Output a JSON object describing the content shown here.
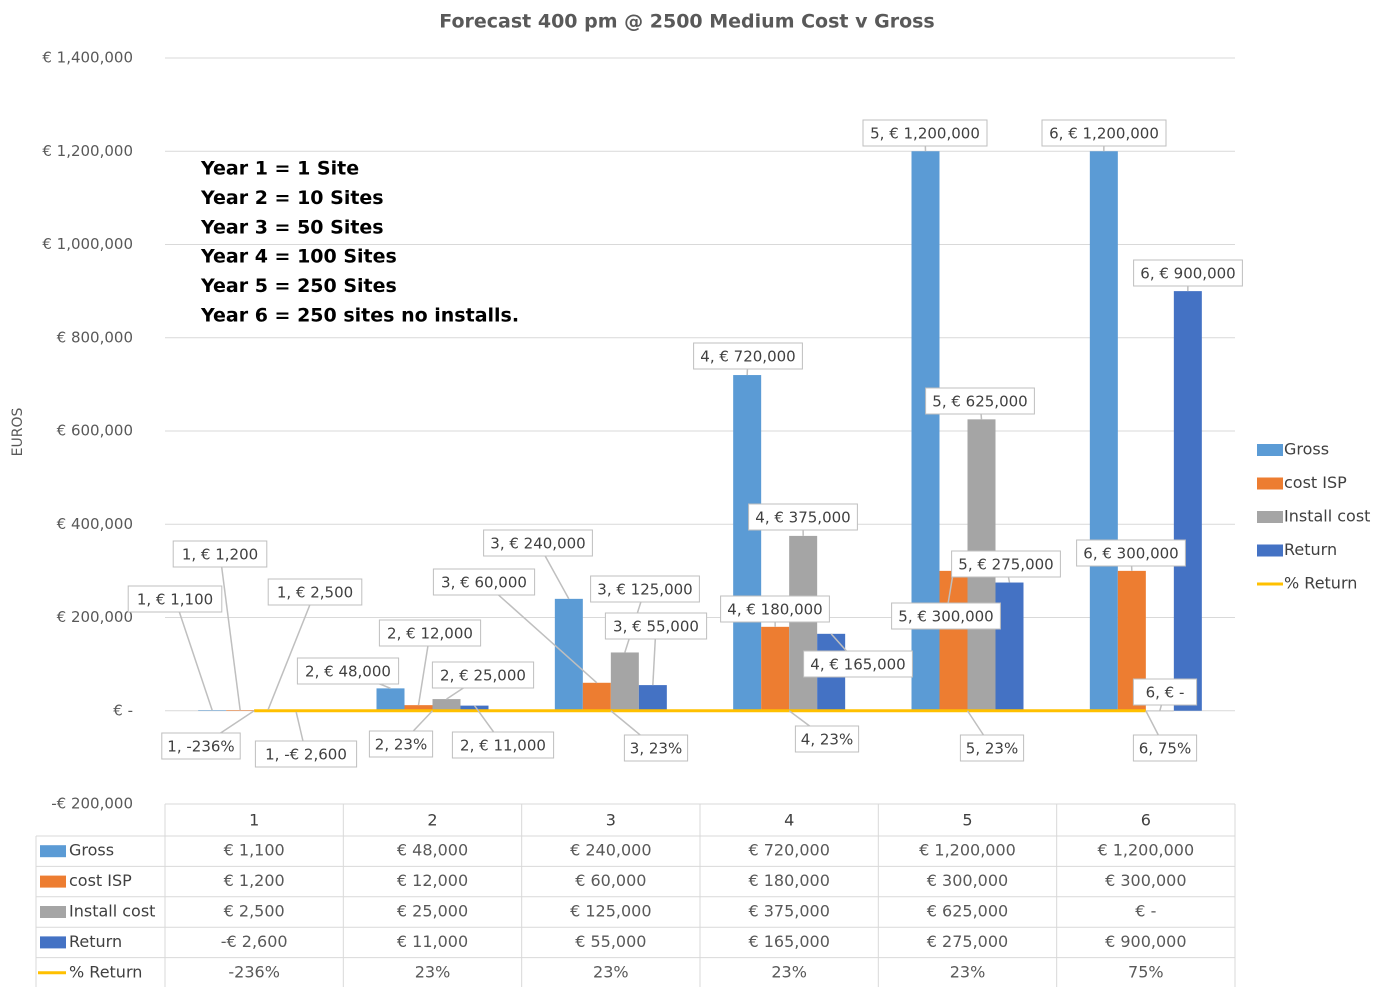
{
  "chart_data": {
    "type": "bar",
    "title": "Forecast 400 pm @ 2500  Medium Cost v Gross",
    "y_label": "EUROS",
    "annotation": [
      "Year 1 = 1 Site",
      "Year 2 = 10 Sites",
      "Year 3 = 50 Sites",
      "Year 4 = 100 Sites",
      "Year 5 = 250 Sites",
      "Year 6 = 250 sites no installs."
    ],
    "categories": [
      "1",
      "2",
      "3",
      "4",
      "5",
      "6"
    ],
    "series": [
      {
        "name": "Gross",
        "type": "bar",
        "color": "#5b9bd5",
        "values": [
          1100,
          48000,
          240000,
          720000,
          1200000,
          1200000
        ],
        "value_labels": [
          "1,  € 1,100",
          "2,  € 48,000",
          "3,  € 240,000",
          "4,  € 720,000",
          "5,  € 1,200,000",
          "6,  € 1,200,000"
        ],
        "table_labels": [
          "€ 1,100",
          "€ 48,000",
          "€ 240,000",
          "€ 720,000",
          "€ 1,200,000",
          "€ 1,200,000"
        ]
      },
      {
        "name": "cost ISP",
        "type": "bar",
        "color": "#ed7d31",
        "values": [
          1200,
          12000,
          60000,
          180000,
          300000,
          300000
        ],
        "value_labels": [
          "1,  € 1,200",
          "2,  € 12,000",
          "3,  € 60,000",
          "4,  € 180,000",
          "5,  € 300,000",
          "6,  € 300,000"
        ],
        "table_labels": [
          "€ 1,200",
          "€ 12,000",
          "€ 60,000",
          "€ 180,000",
          "€ 300,000",
          "€ 300,000"
        ]
      },
      {
        "name": "Install cost",
        "type": "bar",
        "color": "#a5a5a5",
        "values": [
          2500,
          25000,
          125000,
          375000,
          625000,
          0
        ],
        "value_labels": [
          "1,  € 2,500",
          "2,  € 25,000",
          "3,  € 125,000",
          "4,  € 375,000",
          "5,  € 625,000",
          "6,  € -"
        ],
        "table_labels": [
          "€ 2,500",
          "€ 25,000",
          "€ 125,000",
          "€ 375,000",
          "€ 625,000",
          "€ -"
        ]
      },
      {
        "name": "Return",
        "type": "bar",
        "color": "#4472c4",
        "values": [
          -2600,
          11000,
          55000,
          165000,
          275000,
          900000
        ],
        "value_labels": [
          "1,  -€ 2,600",
          "2,  € 11,000",
          "3,  € 55,000",
          "4,  € 165,000",
          "5,  € 275,000",
          "6,  € 900,000"
        ],
        "table_labels": [
          "-€ 2,600",
          "€ 11,000",
          "€ 55,000",
          "€ 165,000",
          "€ 275,000",
          "€ 900,000"
        ]
      },
      {
        "name": "% Return",
        "type": "line",
        "color": "#ffc000",
        "values": [
          -2.36,
          0.23,
          0.23,
          0.23,
          0.23,
          0.75
        ],
        "value_labels": [
          "1,  -236%",
          "2,  23%",
          "3,  23%",
          "4,  23%",
          "5,  23%",
          "6,  75%"
        ],
        "table_labels": [
          "-236%",
          "23%",
          "23%",
          "23%",
          "23%",
          "75%"
        ]
      }
    ],
    "ylim": [
      -200000,
      1400000
    ],
    "yticks": [
      {
        "value": -200000,
        "label": "-€ 200,000"
      },
      {
        "value": 0,
        "label": "€ -"
      },
      {
        "value": 200000,
        "label": "€ 200,000"
      },
      {
        "value": 400000,
        "label": "€ 400,000"
      },
      {
        "value": 600000,
        "label": "€ 600,000"
      },
      {
        "value": 800000,
        "label": "€ 800,000"
      },
      {
        "value": 1000000,
        "label": "€ 1,000,000"
      },
      {
        "value": 1200000,
        "label": "€ 1,200,000"
      },
      {
        "value": 1400000,
        "label": "€ 1,400,000"
      }
    ],
    "grid": true,
    "legend": "right"
  }
}
